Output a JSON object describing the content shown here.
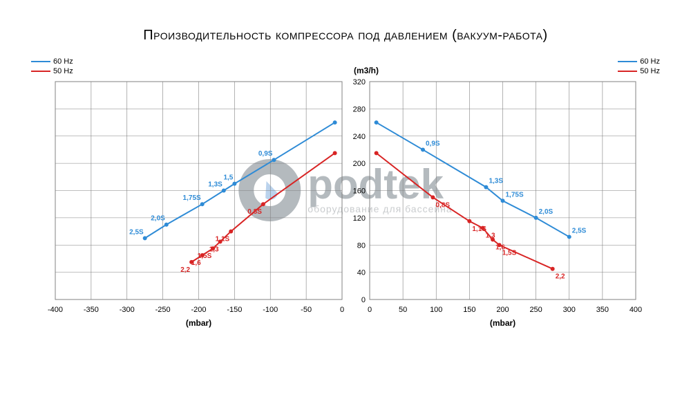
{
  "title": "Производительность компрессора под давлением (вакуум-работа)",
  "y_unit": "(m3/h)",
  "x_unit": "(mbar)",
  "colors": {
    "blue": "#2e8bd6",
    "red": "#d82424",
    "grid": "#808080",
    "bg": "#ffffff",
    "text": "#000000"
  },
  "legend": [
    {
      "label": "60 Hz",
      "color": "#2e8bd6"
    },
    {
      "label": "50 Hz",
      "color": "#d82424"
    }
  ],
  "y_axis": {
    "min": 0,
    "max": 320,
    "step": 40
  },
  "left_chart": {
    "x_axis": {
      "min": -400,
      "max": 0,
      "step": 50
    },
    "series": [
      {
        "color": "#2e8bd6",
        "points": [
          {
            "x": -275,
            "y": 90,
            "label": "2,5S"
          },
          {
            "x": -245,
            "y": 110,
            "label": "2,0S"
          },
          {
            "x": -195,
            "y": 140,
            "label": "1,75S"
          },
          {
            "x": -165,
            "y": 160,
            "label": "1,3S"
          },
          {
            "x": -150,
            "y": 170,
            "label": "1,5"
          },
          {
            "x": -95,
            "y": 205,
            "label": "0,9S"
          },
          {
            "x": -10,
            "y": 260,
            "label": ""
          }
        ]
      },
      {
        "color": "#d82424",
        "points": [
          {
            "x": -210,
            "y": 55,
            "label": "2,2"
          },
          {
            "x": -195,
            "y": 65,
            "label": "1,6"
          },
          {
            "x": -180,
            "y": 75,
            "label": "1,5S"
          },
          {
            "x": -170,
            "y": 85,
            "label": "1,3"
          },
          {
            "x": -155,
            "y": 100,
            "label": "1,1S"
          },
          {
            "x": -110,
            "y": 140,
            "label": "0,8S"
          },
          {
            "x": -10,
            "y": 215,
            "label": ""
          }
        ]
      }
    ]
  },
  "right_chart": {
    "x_axis": {
      "min": 0,
      "max": 400,
      "step": 50
    },
    "series": [
      {
        "color": "#2e8bd6",
        "points": [
          {
            "x": 10,
            "y": 260,
            "label": ""
          },
          {
            "x": 80,
            "y": 220,
            "label": "0,9S"
          },
          {
            "x": 175,
            "y": 165,
            "label": "1,3S"
          },
          {
            "x": 200,
            "y": 145,
            "label": "1,75S"
          },
          {
            "x": 250,
            "y": 120,
            "label": "2,0S"
          },
          {
            "x": 300,
            "y": 92,
            "label": "2,5S"
          }
        ]
      },
      {
        "color": "#d82424",
        "points": [
          {
            "x": 10,
            "y": 215,
            "label": ""
          },
          {
            "x": 95,
            "y": 150,
            "label": "0,8S"
          },
          {
            "x": 150,
            "y": 115,
            "label": "1,1S"
          },
          {
            "x": 170,
            "y": 105,
            "label": "1,3"
          },
          {
            "x": 185,
            "y": 88,
            "label": "1,6"
          },
          {
            "x": 195,
            "y": 80,
            "label": "1,5S"
          },
          {
            "x": 275,
            "y": 45,
            "label": "2,2"
          }
        ]
      }
    ]
  },
  "watermark": {
    "brand": "podtek",
    "tagline": "оборудование для бассейна"
  }
}
